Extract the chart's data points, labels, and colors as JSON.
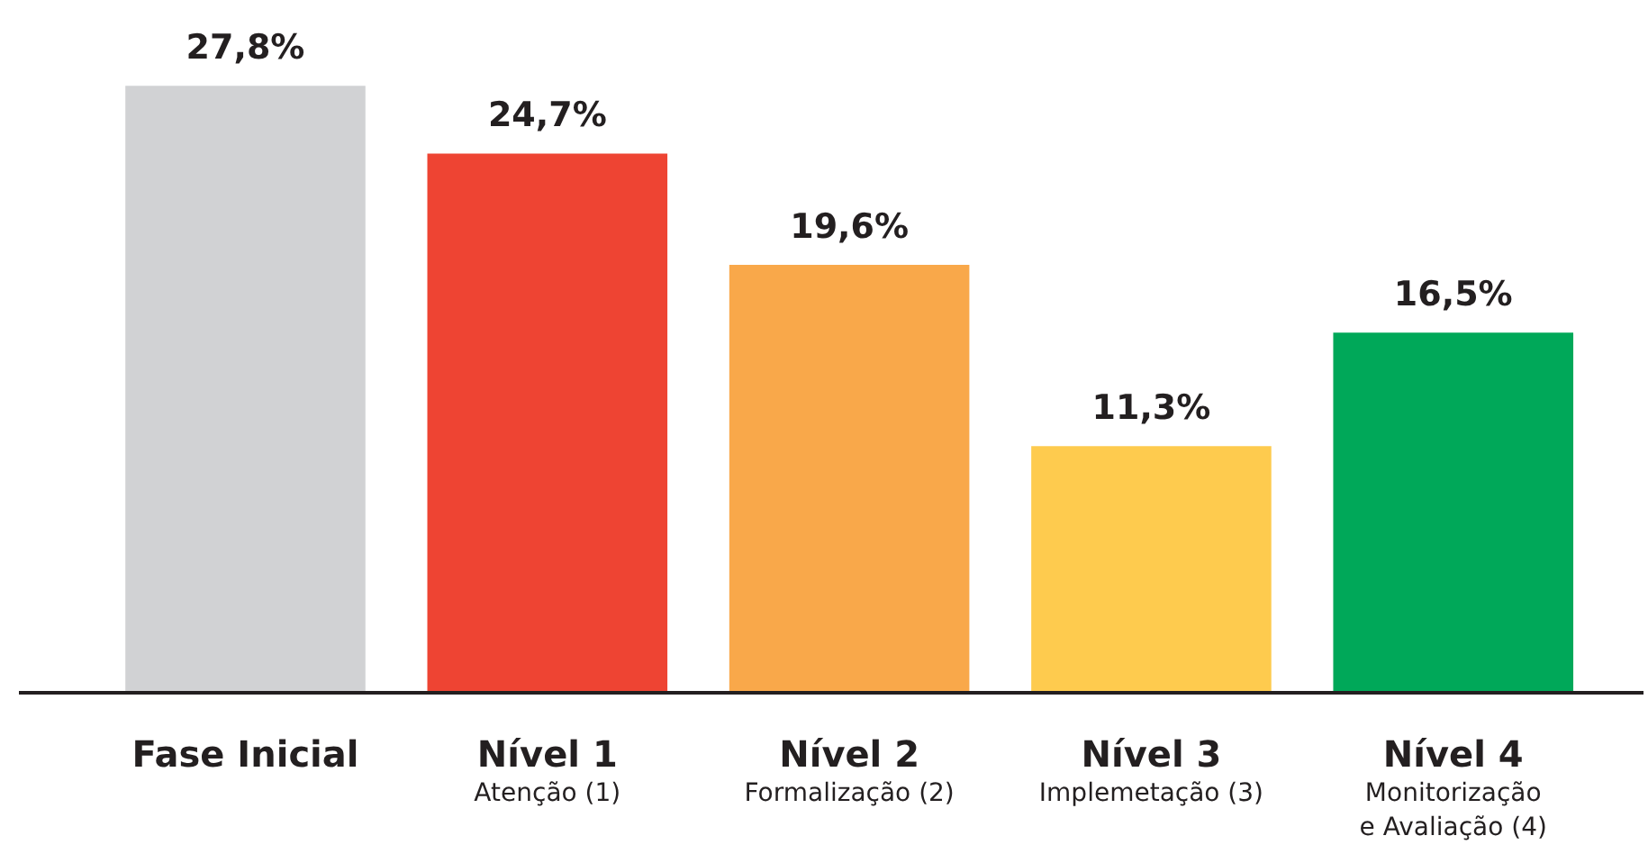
{
  "chart_data": {
    "type": "bar",
    "categories": [
      "Fase Inicial",
      "Nível 1\nAtenção (1)",
      "Nível 2\nFormalização (2)",
      "Nível 3\nImplemetação (3)",
      "Nível 4\nMonitorização\ne Avaliação (4)"
    ],
    "values": [
      27.8,
      24.7,
      19.6,
      11.3,
      16.5
    ],
    "colors": [
      "#d1d2d4",
      "#ee4433",
      "#f9a84a",
      "#fecb4e",
      "#00a859"
    ],
    "value_labels": [
      "27,8%",
      "24,7%",
      "19,6%",
      "11,3%",
      "16,5%"
    ],
    "grid": false
  }
}
